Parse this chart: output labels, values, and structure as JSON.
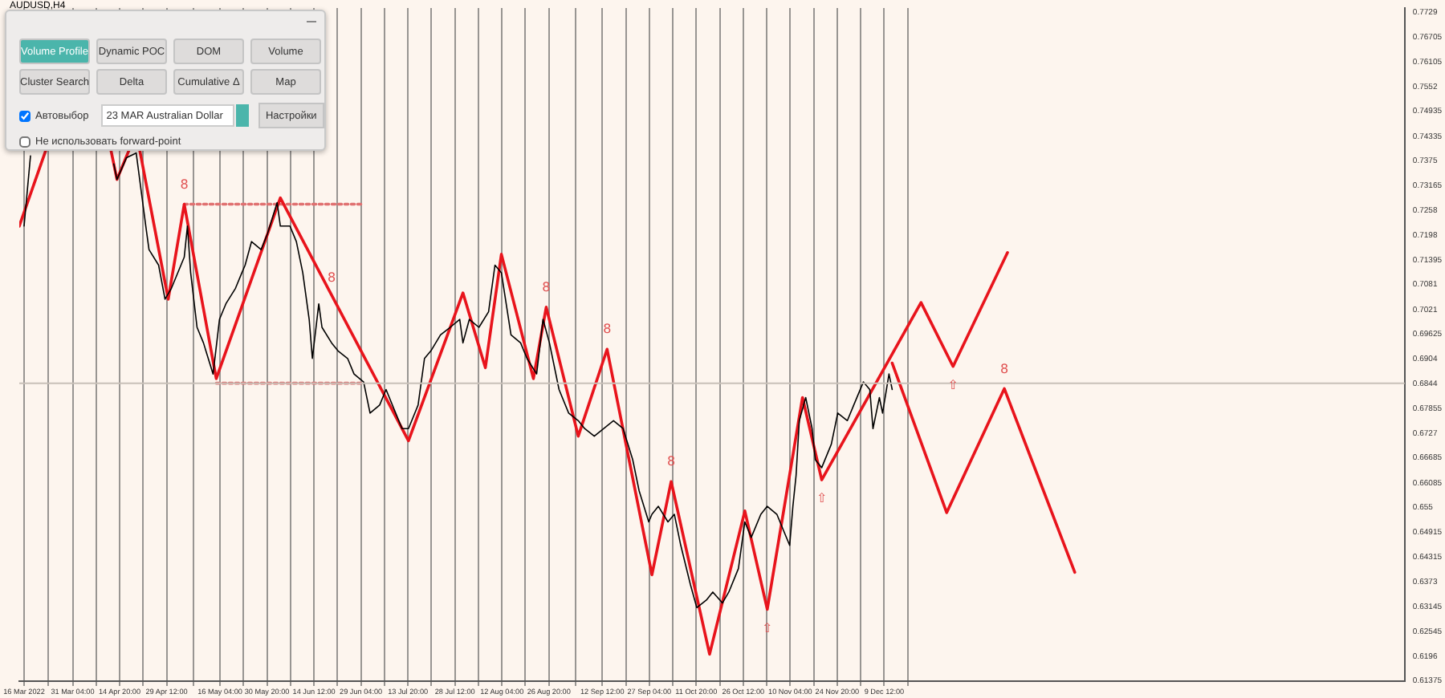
{
  "chart_data": {
    "type": "line",
    "title": "AUDUSD,H4",
    "xlim": [
      "2022-03-14T12:00",
      "2023-05-21"
    ],
    "ylim": [
      0.6137,
      0.7739
    ],
    "xticks": [
      {
        "value": "2022-03-16",
        "label": "16 Mar 2022"
      },
      {
        "value": "2022-03-23T14:00",
        "label": null
      },
      {
        "value": "2022-03-31T04:00",
        "label": "31 Mar 04:00"
      },
      {
        "value": "2022-04-07T12:00",
        "label": null
      },
      {
        "value": "2022-04-14T20:00",
        "label": "14 Apr 20:00"
      },
      {
        "value": "2022-04-22T04:00",
        "label": null
      },
      {
        "value": "2022-04-29T12:00",
        "label": "29 Apr 12:00"
      },
      {
        "value": "2022-05-07T20:00",
        "label": null
      },
      {
        "value": "2022-05-16T04:00",
        "label": "16 May 04:00"
      },
      {
        "value": "2022-05-23T12:00",
        "label": null
      },
      {
        "value": "2022-05-30T20:00",
        "label": "30 May 20:00"
      },
      {
        "value": "2022-06-07T04:00",
        "label": null
      },
      {
        "value": "2022-06-14T12:00",
        "label": "14 Jun 12:00"
      },
      {
        "value": "2022-06-21T20:00",
        "label": null
      },
      {
        "value": "2022-06-29T04:00",
        "label": "29 Jun 04:00"
      },
      {
        "value": "2022-07-06T12:00",
        "label": null
      },
      {
        "value": "2022-07-13T20:00",
        "label": "13 Jul 20:00"
      },
      {
        "value": "2022-07-21T04:00",
        "label": null
      },
      {
        "value": "2022-07-28T12:00",
        "label": "28 Jul 12:00"
      },
      {
        "value": "2022-08-04T20:00",
        "label": null
      },
      {
        "value": "2022-08-12T04:00",
        "label": "12 Aug 04:00"
      },
      {
        "value": "2022-08-19T12:00",
        "label": null
      },
      {
        "value": "2022-08-26T20:00",
        "label": "26 Aug 20:00"
      },
      {
        "value": "2022-09-04T04:00",
        "label": null
      },
      {
        "value": "2022-09-12T12:00",
        "label": "12 Sep 12:00"
      },
      {
        "value": "2022-09-19T20:00",
        "label": null
      },
      {
        "value": "2022-09-27T04:00",
        "label": "27 Sep 04:00"
      },
      {
        "value": "2022-10-04T12:00",
        "label": null
      },
      {
        "value": "2022-10-11T20:00",
        "label": "11 Oct 20:00"
      },
      {
        "value": "2022-10-19T04:00",
        "label": null
      },
      {
        "value": "2022-10-26T12:00",
        "label": "26 Oct 12:00"
      },
      {
        "value": "2022-11-02T20:00",
        "label": null
      },
      {
        "value": "2022-11-10T04:00",
        "label": "10 Nov 04:00"
      },
      {
        "value": "2022-11-17T12:00",
        "label": null
      },
      {
        "value": "2022-11-24T20:00",
        "label": "24 Nov 20:00"
      },
      {
        "value": "2022-12-02T04:00",
        "label": null
      },
      {
        "value": "2022-12-09T12:00",
        "label": "9 Dec 12:00"
      },
      {
        "value": "2022-12-16T20:00",
        "label": null
      }
    ],
    "yticks": [
      0.7729,
      0.76705,
      0.76105,
      0.7552,
      0.74935,
      0.74335,
      0.7375,
      0.73165,
      0.7258,
      0.7198,
      0.71395,
      0.7081,
      0.7021,
      0.69625,
      0.6904,
      0.6844,
      0.67855,
      0.6727,
      0.66685,
      0.66085,
      0.655,
      0.64915,
      0.64315,
      0.6373,
      0.63145,
      0.62545,
      0.6196,
      0.61375
    ],
    "grid": "x",
    "legend": false,
    "marker": "none",
    "series": [
      {
        "type": "line",
        "color": "#000000",
        "x": [
          "2022-03-16",
          "2022-03-18"
        ],
        "values": [
          0.722,
          0.7387
        ]
      },
      {
        "type": "line",
        "color": "#000000",
        "x": [
          "2022-04-13",
          "2022-04-14",
          "2022-04-17",
          "2022-04-20",
          "2022-04-23",
          "2022-04-24",
          "2022-04-27",
          "2022-04-29",
          "2022-05-01",
          "2022-05-05",
          "2022-05-06",
          "2022-05-07",
          "2022-05-09",
          "2022-05-11",
          "2022-05-14",
          "2022-05-16",
          "2022-05-18",
          "2022-05-21",
          "2022-05-23",
          "2022-05-24",
          "2022-05-26",
          "2022-05-29",
          "2022-05-31",
          "2022-06-03",
          "2022-06-04",
          "2022-06-07",
          "2022-06-09",
          "2022-06-11",
          "2022-06-13",
          "2022-06-14",
          "2022-06-16",
          "2022-06-17",
          "2022-06-20",
          "2022-06-22",
          "2022-06-25",
          "2022-06-27",
          "2022-06-30",
          "2022-07-02",
          "2022-07-05",
          "2022-07-07",
          "2022-07-10",
          "2022-07-12",
          "2022-07-14",
          "2022-07-17",
          "2022-07-19",
          "2022-07-21",
          "2022-07-24",
          "2022-07-27",
          "2022-07-30",
          "2022-07-31",
          "2022-08-02",
          "2022-08-05",
          "2022-08-08",
          "2022-08-10",
          "2022-08-12",
          "2022-08-15",
          "2022-08-18",
          "2022-08-20",
          "2022-08-23",
          "2022-08-25",
          "2022-08-27",
          "2022-08-30",
          "2022-09-02",
          "2022-09-05",
          "2022-09-07",
          "2022-09-10",
          "2022-09-16",
          "2022-09-19",
          "2022-09-22",
          "2022-09-24",
          "2022-09-27",
          "2022-09-28",
          "2022-09-30",
          "2022-10-03",
          "2022-10-05",
          "2022-10-07",
          "2022-10-10",
          "2022-10-12",
          "2022-10-15",
          "2022-10-17",
          "2022-10-20",
          "2022-10-22",
          "2022-10-25",
          "2022-10-27",
          "2022-10-29",
          "2022-11-01",
          "2022-11-03",
          "2022-11-06",
          "2022-11-08",
          "2022-11-10",
          "2022-11-11",
          "2022-11-12",
          "2022-11-13",
          "2022-11-15",
          "2022-11-17",
          "2022-11-18",
          "2022-11-20",
          "2022-11-23",
          "2022-11-25",
          "2022-11-28",
          "2022-11-30",
          "2022-12-03",
          "2022-12-05",
          "2022-12-06",
          "2022-12-08",
          "2022-12-09",
          "2022-12-11",
          "2022-12-12"
        ],
        "values": [
          0.7368,
          0.7331,
          0.7383,
          0.7394,
          0.722,
          0.7164,
          0.7127,
          0.7046,
          0.7072,
          0.7146,
          0.722,
          0.7109,
          0.6979,
          0.6942,
          0.6868,
          0.6998,
          0.7035,
          0.7072,
          0.7109,
          0.7127,
          0.7183,
          0.7164,
          0.7202,
          0.7276,
          0.722,
          0.722,
          0.7183,
          0.7109,
          0.6998,
          0.6905,
          0.7035,
          0.6979,
          0.6942,
          0.6923,
          0.6905,
          0.6868,
          0.6849,
          0.6775,
          0.6794,
          0.6831,
          0.6775,
          0.6738,
          0.6738,
          0.6794,
          0.6905,
          0.6923,
          0.6961,
          0.6979,
          0.6998,
          0.6942,
          0.6998,
          0.6979,
          0.7016,
          0.7127,
          0.7109,
          0.6961,
          0.6942,
          0.6905,
          0.6868,
          0.6998,
          0.6942,
          0.6831,
          0.6775,
          0.6757,
          0.6738,
          0.672,
          0.6757,
          0.6738,
          0.6664,
          0.659,
          0.6516,
          0.6534,
          0.6553,
          0.6516,
          0.6534,
          0.646,
          0.6367,
          0.6312,
          0.633,
          0.6349,
          0.6323,
          0.6349,
          0.6405,
          0.6516,
          0.6479,
          0.6534,
          0.6553,
          0.6534,
          0.6497,
          0.646,
          0.6553,
          0.6627,
          0.6757,
          0.6812,
          0.6738,
          0.6664,
          0.6645,
          0.6701,
          0.6775,
          0.6757,
          0.6794,
          0.6849,
          0.6831,
          0.6738,
          0.6812,
          0.6775,
          0.6868,
          0.6831
        ]
      },
      {
        "type": "line",
        "color": "#e8141c",
        "x": [
          "2022-03-14T12:00",
          "2022-03-23"
        ],
        "values": [
          0.722,
          0.7405
        ]
      },
      {
        "type": "line",
        "color": "#e8141c",
        "x": [
          "2022-04-12",
          "2022-04-14",
          "2022-04-18"
        ],
        "values": [
          0.7405,
          0.7331,
          0.7405
        ]
      },
      {
        "type": "line",
        "color": "#e8141c",
        "x": [
          "2022-04-21",
          "2022-04-30",
          "2022-05-05",
          "2022-05-15",
          "2022-06-04",
          "2022-07-14",
          "2022-07-31",
          "2022-08-07",
          "2022-08-12",
          "2022-08-22",
          "2022-08-26",
          "2022-09-05",
          "2022-09-14",
          "2022-09-28",
          "2022-10-04",
          "2022-10-16",
          "2022-10-27",
          "2022-11-03",
          "2022-11-14",
          "2022-11-20",
          "2022-12-21",
          "2022-12-31",
          "2023-01-17"
        ],
        "values": [
          0.7405,
          0.7046,
          0.7272,
          0.6857,
          0.7287,
          0.6709,
          0.7061,
          0.6883,
          0.7153,
          0.6857,
          0.7027,
          0.672,
          0.6927,
          0.639,
          0.6612,
          0.6201,
          0.6542,
          0.6308,
          0.6812,
          0.6616,
          0.7038,
          0.6886,
          0.7157
        ]
      },
      {
        "type": "line",
        "color": "#e8141c",
        "x": [
          "2022-12-12",
          "2022-12-29",
          "2023-01-16",
          "2023-02-07"
        ],
        "values": [
          0.6894,
          0.6538,
          0.6833,
          0.6396
        ]
      },
      {
        "type": "line",
        "color": "#e07070",
        "line_style": "dotted",
        "x": [
          "2022-05-05",
          "2022-06-30"
        ],
        "values": [
          0.7272,
          0.7272
        ]
      },
      {
        "type": "line",
        "color": "#e07070",
        "line_style": "dotted",
        "x": [
          "2022-05-15",
          "2022-06-30"
        ],
        "values": [
          0.6846,
          0.6846
        ]
      }
    ],
    "ref_lines": [
      {
        "axis": "y",
        "value": 0.6846,
        "color": "#c8c0b8"
      }
    ],
    "annotations": [
      "Volume Profile",
      "Dynamic POC",
      "DOM",
      "Volume",
      "Cluster Search",
      "Delta",
      "Cumulative Δ",
      "Map",
      "Автовыбор",
      "23 MAR Australian Dollar",
      "Настройки",
      "Не использовать forward-point",
      {
        "text": "8",
        "x": "2022-05-05",
        "y": 0.7272
      },
      {
        "text": "8",
        "x": "2022-06-20",
        "y": 0.705
      },
      {
        "text": "8",
        "x": "2022-08-26",
        "y": 0.7027
      },
      {
        "text": "8",
        "x": "2022-09-14",
        "y": 0.6927
      },
      {
        "text": "8",
        "x": "2022-10-04",
        "y": 0.6612
      },
      {
        "text": "8",
        "x": "2023-01-16",
        "y": 0.6833
      },
      {
        "text": "⇧",
        "x": "2022-11-03",
        "y": 0.6308
      },
      {
        "text": "⇧",
        "x": "2022-11-20",
        "y": 0.6616
      },
      {
        "text": "⇧",
        "x": "2022-12-31",
        "y": 0.6886
      }
    ]
  }
}
